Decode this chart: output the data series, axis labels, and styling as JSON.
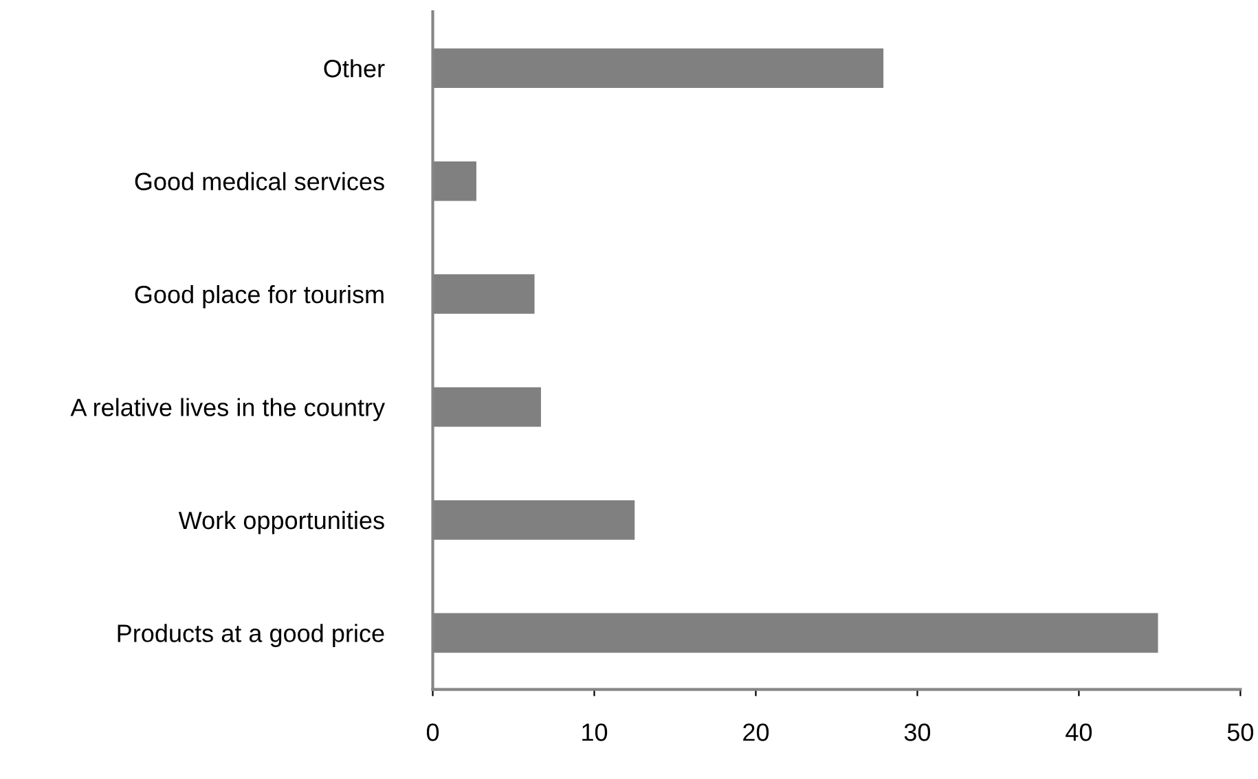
{
  "chart_data": {
    "type": "bar",
    "orientation": "horizontal",
    "categories": [
      "Other",
      "Good medical services",
      "Good place for tourism",
      "A relative lives in the country",
      "Work opportunities",
      "Products at a good price"
    ],
    "values": [
      27.9,
      2.7,
      6.3,
      6.7,
      12.5,
      44.9
    ],
    "color": "#808080",
    "xlim": [
      0,
      50
    ],
    "xticks": [
      0,
      10,
      20,
      30,
      40,
      50
    ],
    "grid": false
  }
}
